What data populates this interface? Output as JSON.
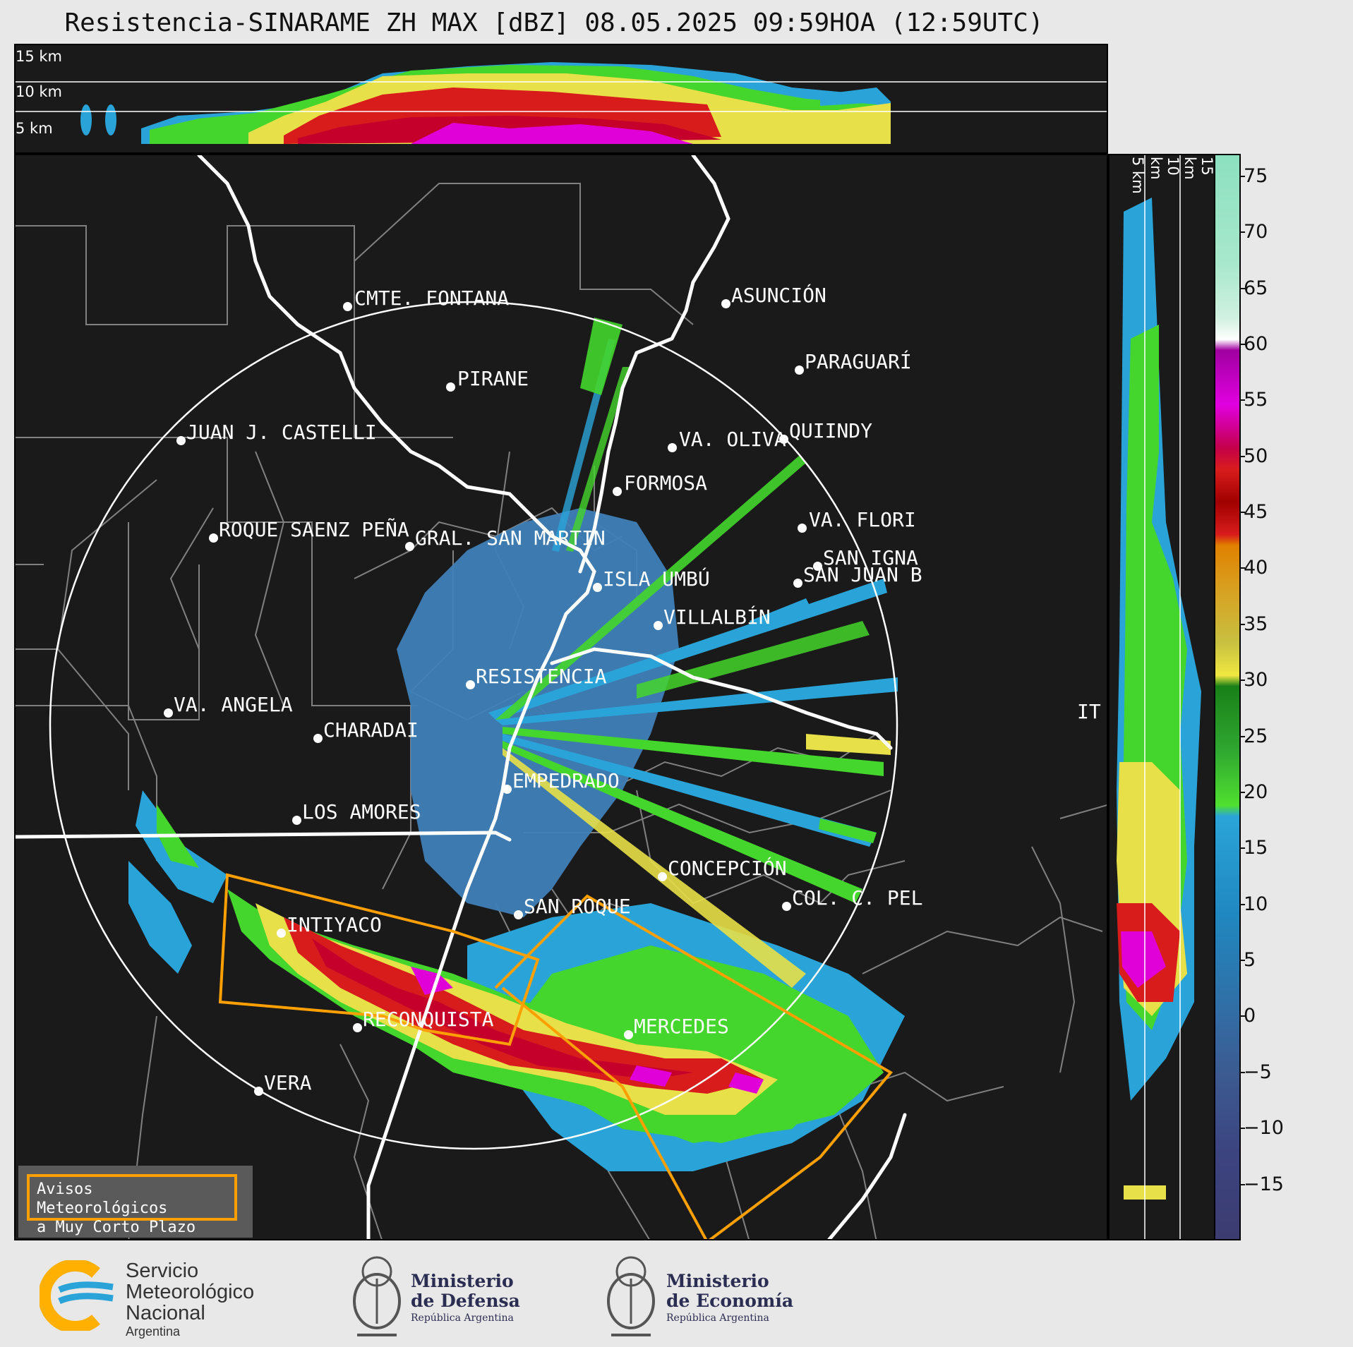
{
  "title": "Resistencia-SINARAME ZH MAX [dBZ] 08.05.2025 09:59HOA (12:59UTC)",
  "top_section": {
    "heights": [
      "15 km",
      "10 km",
      "5 km"
    ]
  },
  "right_section": {
    "heights": [
      "5 km",
      "10 km",
      "15 km"
    ]
  },
  "colorbar": {
    "unit": "dBZ",
    "ticks": [
      "75",
      "70",
      "65",
      "60",
      "55",
      "50",
      "45",
      "40",
      "35",
      "30",
      "25",
      "20",
      "15",
      "10",
      "5",
      "0",
      "−5",
      "−10",
      "−15"
    ],
    "range": [
      -20,
      77
    ]
  },
  "cities": [
    {
      "name": "CMTE. FONTANA"
    },
    {
      "name": "ASUNCIÓN"
    },
    {
      "name": "PARAGUARÍ"
    },
    {
      "name": "PIRANE"
    },
    {
      "name": "JUAN J. CASTELLI"
    },
    {
      "name": "VA. OLIVA"
    },
    {
      "name": "QUIINDY"
    },
    {
      "name": "FORMOSA"
    },
    {
      "name": "VA. FLORI"
    },
    {
      "name": "GRAL. SAN MARTIN"
    },
    {
      "name": "SAN JUAN B"
    },
    {
      "name": "ROQUE SAENZ PEÑA"
    },
    {
      "name": "SAN IGNA"
    },
    {
      "name": "ISLA UMBÚ"
    },
    {
      "name": "VILLALBÍN"
    },
    {
      "name": "RESISTENCIA"
    },
    {
      "name": "VA. ANGELA"
    },
    {
      "name": "IT"
    },
    {
      "name": "CHARADAI"
    },
    {
      "name": "EMPEDRADO"
    },
    {
      "name": "LOS AMORES"
    },
    {
      "name": "CONCEPCIÓN"
    },
    {
      "name": "SAN ROQUE"
    },
    {
      "name": "COL. C. PEL"
    },
    {
      "name": "INTIYACO"
    },
    {
      "name": "RECONQUISTA"
    },
    {
      "name": "MERCEDES"
    },
    {
      "name": "VERA"
    }
  ],
  "avisos": {
    "line1": "Avisos Meteorológicos",
    "line2": "a Muy Corto Plazo"
  },
  "footer": {
    "smn": {
      "line1": "Servicio",
      "line2": "Meteorológico",
      "line3": "Nacional",
      "line4": "Argentina"
    },
    "defensa": {
      "line1": "Ministerio",
      "line2": "de Defensa",
      "line3": "República Argentina"
    },
    "economia": {
      "line1": "Ministerio",
      "line2": "de Economía",
      "line3": "República Argentina"
    }
  },
  "colors": {
    "background": "#1a1a1a",
    "warning": "#ffa000",
    "border": "#ffffff"
  }
}
